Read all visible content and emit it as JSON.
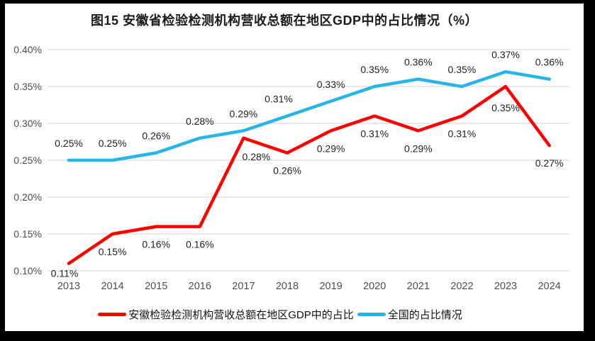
{
  "chart_data": {
    "type": "line",
    "title": "图15 安徽省检验检测机构营收总额在地区GDP中的占比情况（%）",
    "categories": [
      "2013",
      "2014",
      "2015",
      "2016",
      "2017",
      "2018",
      "2019",
      "2020",
      "2021",
      "2022",
      "2023",
      "2024"
    ],
    "series": [
      {
        "name": "安徽检验检测机构营收总额在地区GDP中的占比",
        "color": "#fe0000",
        "values": [
          0.11,
          0.15,
          0.16,
          0.16,
          0.28,
          0.26,
          0.29,
          0.31,
          0.29,
          0.31,
          0.35,
          0.27
        ],
        "labels": [
          "0.11%",
          "0.15%",
          "0.16%",
          "0.16%",
          "0.28%",
          "0.26%",
          "0.29%",
          "0.31%",
          "0.29%",
          "0.31%",
          "0.35%",
          "0.27%"
        ]
      },
      {
        "name": "全国的占比情况",
        "color": "#29b4e9",
        "values": [
          0.25,
          0.25,
          0.26,
          0.28,
          0.29,
          0.31,
          0.33,
          0.35,
          0.36,
          0.35,
          0.37,
          0.36
        ],
        "labels": [
          "0.25%",
          "0.25%",
          "0.26%",
          "0.28%",
          "0.29%",
          "0.31%",
          "0.33%",
          "0.35%",
          "0.36%",
          "0.35%",
          "0.37%",
          "0.36%"
        ]
      }
    ],
    "y_axis": {
      "ticks": [
        "0.40%",
        "0.35%",
        "0.30%",
        "0.25%",
        "0.20%",
        "0.15%",
        "0.10%"
      ],
      "min": 0.1,
      "max": 0.4,
      "step": 0.05
    },
    "xlabel": "",
    "ylabel": "",
    "grid": true,
    "legend_position": "bottom",
    "colors": {
      "gridline": "#d9d9d9",
      "axis_text": "#4d4d4d",
      "label_text": "#1f1f1f",
      "background": "#ffffff",
      "frame": "#000000"
    }
  }
}
